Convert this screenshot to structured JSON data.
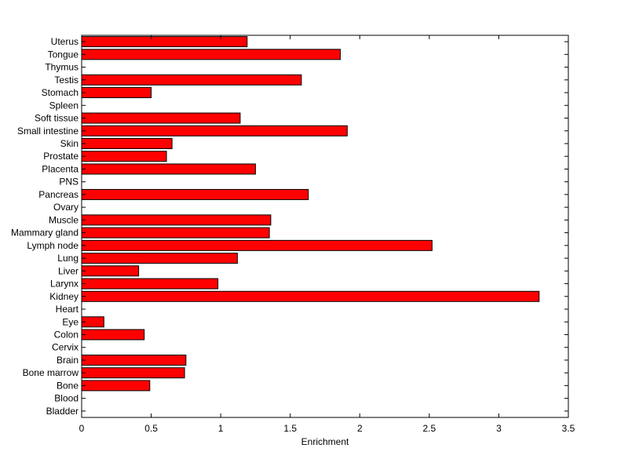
{
  "chart_data": {
    "type": "bar",
    "orientation": "horizontal",
    "title": "",
    "xlabel": "Enrichment",
    "ylabel": "",
    "xlim": [
      0,
      3.5
    ],
    "xticks": [
      0,
      0.5,
      1,
      1.5,
      2,
      2.5,
      3,
      3.5
    ],
    "xtick_labels": [
      "0",
      "0.5",
      "1",
      "1.5",
      "2",
      "2.5",
      "3",
      "3.5"
    ],
    "grid": false,
    "legend": "none",
    "bar_color": "#ff0000",
    "edge_color": "#000000",
    "categories": [
      "Bladder",
      "Blood",
      "Bone",
      "Bone marrow",
      "Brain",
      "Cervix",
      "Colon",
      "Eye",
      "Heart",
      "Kidney",
      "Larynx",
      "Liver",
      "Lung",
      "Lymph node",
      "Mammary gland",
      "Muscle",
      "Ovary",
      "Pancreas",
      "PNS",
      "Placenta",
      "Prostate",
      "Skin",
      "Small intestine",
      "Soft tissue",
      "Spleen",
      "Stomach",
      "Testis",
      "Thymus",
      "Tongue",
      "Uterus"
    ],
    "values": [
      0,
      0,
      0.49,
      0.74,
      0.75,
      0,
      0.45,
      0.16,
      0,
      3.29,
      0.98,
      0.41,
      1.12,
      2.52,
      1.35,
      1.36,
      0,
      1.63,
      0,
      1.25,
      0.61,
      0.65,
      1.91,
      1.14,
      0,
      0.5,
      1.58,
      0,
      1.86,
      1.19
    ]
  }
}
